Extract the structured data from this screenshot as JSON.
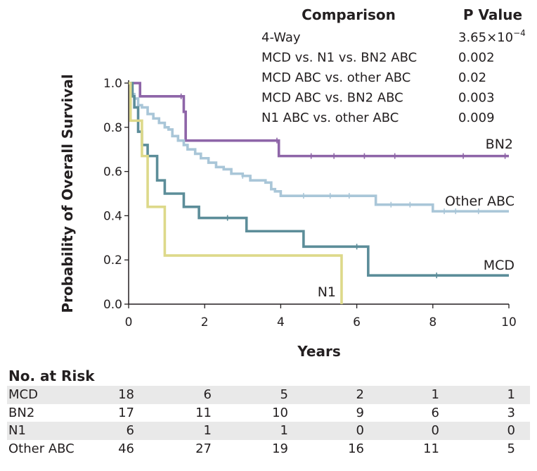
{
  "chart_data": {
    "type": "line",
    "subtype": "kaplan-meier",
    "xlabel": "Years",
    "ylabel": "Probability of Overall Survival",
    "xlim": [
      0,
      10
    ],
    "ylim": [
      0,
      1
    ],
    "xticks": [
      "0",
      "2",
      "4",
      "6",
      "8",
      "10"
    ],
    "xtick_values": [
      0,
      2,
      4,
      6,
      8,
      10
    ],
    "yticks": [
      "0.0",
      "0.2",
      "0.4",
      "0.6",
      "0.8",
      "1.0"
    ],
    "ytick_values": [
      0,
      0.2,
      0.4,
      0.6,
      0.8,
      1.0
    ],
    "series": [
      {
        "name": "BN2",
        "label": "BN2",
        "color": "#8e65a8",
        "x": [
          0,
          0.2,
          0.3,
          1.4,
          1.45,
          1.5,
          3.95,
          10
        ],
        "y": [
          1.0,
          1.0,
          0.94,
          0.94,
          0.87,
          0.74,
          0.67,
          0.67
        ]
      },
      {
        "name": "Other ABC",
        "label": "Other ABC",
        "color": "#a9c6d8",
        "x": [
          0,
          0.05,
          0.1,
          0.15,
          0.25,
          0.35,
          0.5,
          0.65,
          0.8,
          0.95,
          1.05,
          1.15,
          1.3,
          1.45,
          1.55,
          1.75,
          1.9,
          2.1,
          2.3,
          2.5,
          2.7,
          3.0,
          3.2,
          3.6,
          3.75,
          3.85,
          4.0,
          4.45,
          6.5,
          8.0,
          10
        ],
        "y": [
          1.0,
          0.97,
          0.95,
          0.93,
          0.9,
          0.89,
          0.86,
          0.84,
          0.82,
          0.8,
          0.79,
          0.76,
          0.74,
          0.72,
          0.7,
          0.68,
          0.66,
          0.64,
          0.62,
          0.61,
          0.59,
          0.58,
          0.56,
          0.55,
          0.52,
          0.51,
          0.49,
          0.49,
          0.45,
          0.42,
          0.42
        ]
      },
      {
        "name": "MCD",
        "label": "MCD",
        "color": "#5c8d99",
        "x": [
          0,
          0.1,
          0.15,
          0.25,
          0.35,
          0.5,
          0.75,
          0.95,
          1.45,
          1.85,
          3.1,
          4.6,
          6.3,
          10
        ],
        "y": [
          1.0,
          0.94,
          0.89,
          0.78,
          0.72,
          0.67,
          0.56,
          0.5,
          0.44,
          0.39,
          0.33,
          0.26,
          0.13,
          0.13
        ]
      },
      {
        "name": "N1",
        "label": "N1",
        "color": "#ddd98a",
        "x": [
          0,
          0.05,
          0.2,
          0.35,
          0.5,
          0.95,
          5.55,
          5.6
        ],
        "y": [
          1.0,
          0.83,
          0.83,
          0.67,
          0.44,
          0.22,
          0.22,
          0.0
        ]
      }
    ],
    "comparison_table": {
      "header_comparison": "Comparison",
      "header_p": "P Value",
      "rows": [
        {
          "comparison": "4-Way",
          "p": "3.65×10",
          "p_exp": "−4"
        },
        {
          "comparison": "MCD vs. N1 vs. BN2 ABC",
          "p": "0.002",
          "p_exp": ""
        },
        {
          "comparison": "MCD ABC vs. other ABC",
          "p": "0.02",
          "p_exp": ""
        },
        {
          "comparison": "MCD ABC vs. BN2 ABC",
          "p": "0.003",
          "p_exp": ""
        },
        {
          "comparison": "N1 ABC vs. other ABC",
          "p": "0.009",
          "p_exp": ""
        }
      ]
    },
    "risk_table": {
      "title": "No. at Risk",
      "rows": [
        {
          "name": "MCD",
          "values": [
            "18",
            "6",
            "5",
            "2",
            "1",
            "1"
          ]
        },
        {
          "name": "BN2",
          "values": [
            "17",
            "11",
            "10",
            "9",
            "6",
            "3"
          ]
        },
        {
          "name": "N1",
          "values": [
            "6",
            "1",
            "1",
            "0",
            "0",
            "0"
          ]
        },
        {
          "name": "Other ABC",
          "values": [
            "46",
            "27",
            "19",
            "16",
            "11",
            "5"
          ]
        }
      ]
    }
  }
}
